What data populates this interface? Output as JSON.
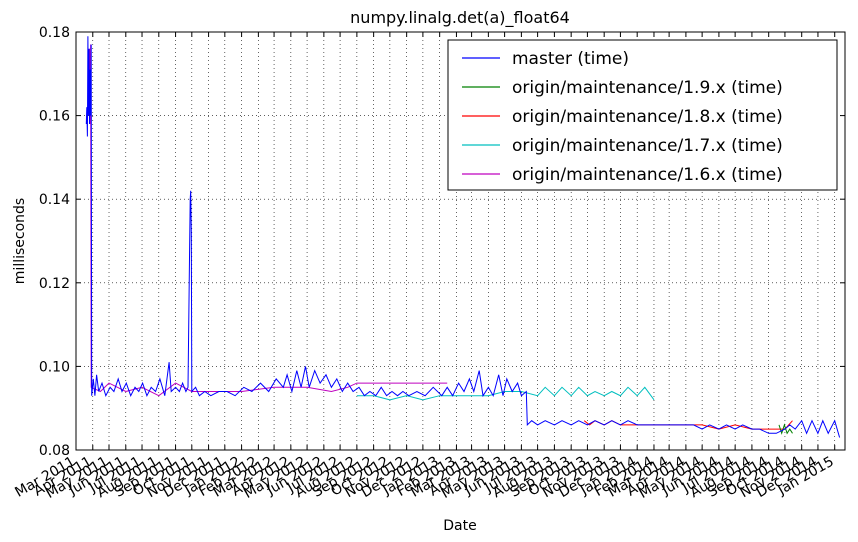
{
  "chart_data": {
    "type": "line",
    "title": "numpy.linalg.det(a)_float64",
    "xlabel": "Date",
    "ylabel": "milliseconds",
    "ylim": [
      0.08,
      0.18
    ],
    "xlim": [
      "2011-03-01",
      "2015-01-20"
    ],
    "grid": true,
    "legend_position": "top-right",
    "y_ticks": [
      "0.08",
      "0.10",
      "0.12",
      "0.14",
      "0.16",
      "0.18"
    ],
    "x_ticks": [
      {
        "date": "2011-03-01",
        "label": "Mar 2011"
      },
      {
        "date": "2011-04-01",
        "label": "Apr 2011"
      },
      {
        "date": "2011-05-01",
        "label": "May 2011"
      },
      {
        "date": "2011-06-01",
        "label": "Jun 2011"
      },
      {
        "date": "2011-07-01",
        "label": "Jul 2011"
      },
      {
        "date": "2011-08-01",
        "label": "Aug 2011"
      },
      {
        "date": "2011-09-01",
        "label": "Sep 2011"
      },
      {
        "date": "2011-10-01",
        "label": "Oct 2011"
      },
      {
        "date": "2011-11-01",
        "label": "Nov 2011"
      },
      {
        "date": "2011-12-01",
        "label": "Dec 2011"
      },
      {
        "date": "2012-01-01",
        "label": "Jan 2012"
      },
      {
        "date": "2012-02-01",
        "label": "Feb 2012"
      },
      {
        "date": "2012-03-01",
        "label": "Mar 2012"
      },
      {
        "date": "2012-04-01",
        "label": "Apr 2012"
      },
      {
        "date": "2012-05-01",
        "label": "May 2012"
      },
      {
        "date": "2012-06-01",
        "label": "Jun 2012"
      },
      {
        "date": "2012-07-01",
        "label": "Jul 2012"
      },
      {
        "date": "2012-08-01",
        "label": "Aug 2012"
      },
      {
        "date": "2012-09-01",
        "label": "Sep 2012"
      },
      {
        "date": "2012-10-01",
        "label": "Oct 2012"
      },
      {
        "date": "2012-11-01",
        "label": "Nov 2012"
      },
      {
        "date": "2012-12-01",
        "label": "Dec 2012"
      },
      {
        "date": "2013-01-01",
        "label": "Jan 2013"
      },
      {
        "date": "2013-02-01",
        "label": "Feb 2013"
      },
      {
        "date": "2013-03-01",
        "label": "Mar 2013"
      },
      {
        "date": "2013-04-01",
        "label": "Apr 2013"
      },
      {
        "date": "2013-05-01",
        "label": "May 2013"
      },
      {
        "date": "2013-06-01",
        "label": "Jun 2013"
      },
      {
        "date": "2013-07-01",
        "label": "Jul 2013"
      },
      {
        "date": "2013-08-01",
        "label": "Aug 2013"
      },
      {
        "date": "2013-09-01",
        "label": "Sep 2013"
      },
      {
        "date": "2013-10-01",
        "label": "Oct 2013"
      },
      {
        "date": "2013-11-01",
        "label": "Nov 2013"
      },
      {
        "date": "2013-12-01",
        "label": "Dec 2013"
      },
      {
        "date": "2014-01-01",
        "label": "Jan 2014"
      },
      {
        "date": "2014-02-01",
        "label": "Feb 2014"
      },
      {
        "date": "2014-03-01",
        "label": "Mar 2014"
      },
      {
        "date": "2014-04-01",
        "label": "Apr 2014"
      },
      {
        "date": "2014-05-01",
        "label": "May 2014"
      },
      {
        "date": "2014-06-01",
        "label": "Jun 2014"
      },
      {
        "date": "2014-07-01",
        "label": "Jul 2014"
      },
      {
        "date": "2014-08-01",
        "label": "Aug 2014"
      },
      {
        "date": "2014-09-01",
        "label": "Sep 2014"
      },
      {
        "date": "2014-10-01",
        "label": "Oct 2014"
      },
      {
        "date": "2014-11-01",
        "label": "Nov 2014"
      },
      {
        "date": "2014-12-01",
        "label": "Dec 2014"
      },
      {
        "date": "2015-01-01",
        "label": "Jan 2015"
      }
    ],
    "series": [
      {
        "name": "master (time)",
        "color": "#0000ff",
        "points": [
          [
            "2011-03-20",
            0.158
          ],
          [
            "2011-03-21",
            0.162
          ],
          [
            "2011-03-22",
            0.155
          ],
          [
            "2011-03-23",
            0.179
          ],
          [
            "2011-03-24",
            0.16
          ],
          [
            "2011-03-25",
            0.176
          ],
          [
            "2011-03-26",
            0.158
          ],
          [
            "2011-03-27",
            0.171
          ],
          [
            "2011-03-28",
            0.16
          ],
          [
            "2011-03-29",
            0.177
          ],
          [
            "2011-03-30",
            0.093
          ],
          [
            "2011-04-02",
            0.097
          ],
          [
            "2011-04-05",
            0.093
          ],
          [
            "2011-04-08",
            0.098
          ],
          [
            "2011-04-12",
            0.094
          ],
          [
            "2011-04-18",
            0.096
          ],
          [
            "2011-04-25",
            0.093
          ],
          [
            "2011-05-03",
            0.095
          ],
          [
            "2011-05-10",
            0.094
          ],
          [
            "2011-05-18",
            0.097
          ],
          [
            "2011-05-25",
            0.094
          ],
          [
            "2011-06-02",
            0.096
          ],
          [
            "2011-06-10",
            0.093
          ],
          [
            "2011-06-18",
            0.095
          ],
          [
            "2011-06-25",
            0.094
          ],
          [
            "2011-07-02",
            0.096
          ],
          [
            "2011-07-10",
            0.093
          ],
          [
            "2011-07-18",
            0.095
          ],
          [
            "2011-07-26",
            0.094
          ],
          [
            "2011-08-03",
            0.097
          ],
          [
            "2011-08-12",
            0.093
          ],
          [
            "2011-08-20",
            0.101
          ],
          [
            "2011-08-24",
            0.094
          ],
          [
            "2011-09-01",
            0.095
          ],
          [
            "2011-09-08",
            0.094
          ],
          [
            "2011-09-14",
            0.096
          ],
          [
            "2011-09-20",
            0.094
          ],
          [
            "2011-09-24",
            0.095
          ],
          [
            "2011-09-27",
            0.128
          ],
          [
            "2011-09-28",
            0.14
          ],
          [
            "2011-09-29",
            0.142
          ],
          [
            "2011-09-30",
            0.132
          ],
          [
            "2011-10-01",
            0.094
          ],
          [
            "2011-10-08",
            0.095
          ],
          [
            "2011-10-15",
            0.093
          ],
          [
            "2011-10-25",
            0.094
          ],
          [
            "2011-11-05",
            0.093
          ],
          [
            "2011-11-20",
            0.094
          ],
          [
            "2011-12-05",
            0.094
          ],
          [
            "2011-12-20",
            0.093
          ],
          [
            "2012-01-05",
            0.095
          ],
          [
            "2012-01-20",
            0.094
          ],
          [
            "2012-02-05",
            0.096
          ],
          [
            "2012-02-20",
            0.094
          ],
          [
            "2012-03-05",
            0.097
          ],
          [
            "2012-03-18",
            0.095
          ],
          [
            "2012-03-25",
            0.098
          ],
          [
            "2012-04-03",
            0.094
          ],
          [
            "2012-04-12",
            0.099
          ],
          [
            "2012-04-20",
            0.095
          ],
          [
            "2012-04-28",
            0.1
          ],
          [
            "2012-05-05",
            0.095
          ],
          [
            "2012-05-15",
            0.099
          ],
          [
            "2012-05-25",
            0.096
          ],
          [
            "2012-06-05",
            0.098
          ],
          [
            "2012-06-15",
            0.095
          ],
          [
            "2012-06-25",
            0.097
          ],
          [
            "2012-07-05",
            0.094
          ],
          [
            "2012-07-15",
            0.096
          ],
          [
            "2012-07-25",
            0.094
          ],
          [
            "2012-08-05",
            0.095
          ],
          [
            "2012-08-15",
            0.093
          ],
          [
            "2012-08-25",
            0.094
          ],
          [
            "2012-09-05",
            0.093
          ],
          [
            "2012-09-15",
            0.095
          ],
          [
            "2012-09-25",
            0.093
          ],
          [
            "2012-10-05",
            0.094
          ],
          [
            "2012-10-15",
            0.093
          ],
          [
            "2012-10-25",
            0.094
          ],
          [
            "2012-11-05",
            0.093
          ],
          [
            "2012-11-20",
            0.094
          ],
          [
            "2012-12-05",
            0.093
          ],
          [
            "2012-12-20",
            0.095
          ],
          [
            "2013-01-05",
            0.093
          ],
          [
            "2013-01-15",
            0.095
          ],
          [
            "2013-01-25",
            0.093
          ],
          [
            "2013-02-05",
            0.096
          ],
          [
            "2013-02-15",
            0.094
          ],
          [
            "2013-02-25",
            0.097
          ],
          [
            "2013-03-05",
            0.094
          ],
          [
            "2013-03-15",
            0.099
          ],
          [
            "2013-03-22",
            0.093
          ],
          [
            "2013-04-01",
            0.095
          ],
          [
            "2013-04-10",
            0.093
          ],
          [
            "2013-04-20",
            0.098
          ],
          [
            "2013-04-28",
            0.093
          ],
          [
            "2013-05-05",
            0.097
          ],
          [
            "2013-05-15",
            0.094
          ],
          [
            "2013-05-25",
            0.096
          ],
          [
            "2013-06-01",
            0.093
          ],
          [
            "2013-06-10",
            0.094
          ],
          [
            "2013-06-12",
            0.086
          ],
          [
            "2013-06-20",
            0.087
          ],
          [
            "2013-07-01",
            0.086
          ],
          [
            "2013-07-15",
            0.087
          ],
          [
            "2013-08-01",
            0.086
          ],
          [
            "2013-08-15",
            0.087
          ],
          [
            "2013-09-01",
            0.086
          ],
          [
            "2013-09-15",
            0.087
          ],
          [
            "2013-10-01",
            0.086
          ],
          [
            "2013-10-15",
            0.087
          ],
          [
            "2013-11-01",
            0.086
          ],
          [
            "2013-11-15",
            0.087
          ],
          [
            "2013-12-01",
            0.086
          ],
          [
            "2013-12-15",
            0.087
          ],
          [
            "2014-01-01",
            0.086
          ],
          [
            "2014-01-15",
            0.086
          ],
          [
            "2014-02-01",
            0.086
          ],
          [
            "2014-02-15",
            0.086
          ],
          [
            "2014-03-01",
            0.086
          ],
          [
            "2014-03-15",
            0.086
          ],
          [
            "2014-04-01",
            0.086
          ],
          [
            "2014-04-15",
            0.086
          ],
          [
            "2014-05-01",
            0.085
          ],
          [
            "2014-05-15",
            0.086
          ],
          [
            "2014-06-01",
            0.085
          ],
          [
            "2014-06-15",
            0.086
          ],
          [
            "2014-07-01",
            0.085
          ],
          [
            "2014-07-15",
            0.086
          ],
          [
            "2014-08-01",
            0.085
          ],
          [
            "2014-08-15",
            0.085
          ],
          [
            "2014-09-01",
            0.084
          ],
          [
            "2014-09-15",
            0.084
          ],
          [
            "2014-10-01",
            0.085
          ],
          [
            "2014-10-10",
            0.086
          ],
          [
            "2014-10-20",
            0.085
          ],
          [
            "2014-11-01",
            0.087
          ],
          [
            "2014-11-10",
            0.084
          ],
          [
            "2014-11-20",
            0.087
          ],
          [
            "2014-12-01",
            0.084
          ],
          [
            "2014-12-10",
            0.087
          ],
          [
            "2014-12-20",
            0.084
          ],
          [
            "2015-01-01",
            0.087
          ],
          [
            "2015-01-10",
            0.083
          ]
        ]
      },
      {
        "name": "origin/maintenance/1.9.x (time)",
        "color": "#008000",
        "points": [
          [
            "2014-09-20",
            0.086
          ],
          [
            "2014-09-25",
            0.084
          ],
          [
            "2014-09-30",
            0.086
          ],
          [
            "2014-10-05",
            0.084
          ],
          [
            "2014-10-10",
            0.085
          ],
          [
            "2014-10-15",
            0.084
          ]
        ]
      },
      {
        "name": "origin/maintenance/1.8.x (time)",
        "color": "#ff0000",
        "points": [
          [
            "2013-09-25",
            0.087
          ],
          [
            "2013-10-05",
            0.086
          ],
          [
            "2013-10-15",
            0.087
          ],
          [
            "2013-11-01",
            0.086
          ],
          [
            "2013-11-15",
            0.087
          ],
          [
            "2013-12-01",
            0.086
          ],
          [
            "2013-12-15",
            0.086
          ],
          [
            "2014-01-10",
            0.086
          ],
          [
            "2014-02-01",
            0.086
          ],
          [
            "2014-03-01",
            0.086
          ],
          [
            "2014-04-01",
            0.086
          ],
          [
            "2014-05-01",
            0.086
          ],
          [
            "2014-06-01",
            0.085
          ],
          [
            "2014-07-01",
            0.086
          ],
          [
            "2014-08-01",
            0.085
          ],
          [
            "2014-09-01",
            0.085
          ],
          [
            "2014-10-01",
            0.085
          ],
          [
            "2014-10-15",
            0.087
          ]
        ]
      },
      {
        "name": "origin/maintenance/1.7.x (time)",
        "color": "#00bfbf",
        "points": [
          [
            "2012-08-01",
            0.093
          ],
          [
            "2012-09-01",
            0.093
          ],
          [
            "2012-10-01",
            0.092
          ],
          [
            "2012-11-01",
            0.093
          ],
          [
            "2012-12-01",
            0.092
          ],
          [
            "2013-01-01",
            0.093
          ],
          [
            "2013-02-01",
            0.093
          ],
          [
            "2013-03-01",
            0.093
          ],
          [
            "2013-04-01",
            0.093
          ],
          [
            "2013-05-01",
            0.094
          ],
          [
            "2013-06-01",
            0.094
          ],
          [
            "2013-07-01",
            0.093
          ],
          [
            "2013-07-15",
            0.095
          ],
          [
            "2013-08-01",
            0.093
          ],
          [
            "2013-08-15",
            0.095
          ],
          [
            "2013-09-01",
            0.093
          ],
          [
            "2013-09-15",
            0.095
          ],
          [
            "2013-10-01",
            0.093
          ],
          [
            "2013-10-15",
            0.094
          ],
          [
            "2013-11-01",
            0.093
          ],
          [
            "2013-11-15",
            0.094
          ],
          [
            "2013-12-01",
            0.093
          ],
          [
            "2013-12-15",
            0.095
          ],
          [
            "2014-01-01",
            0.093
          ],
          [
            "2014-01-15",
            0.095
          ],
          [
            "2014-02-01",
            0.092
          ]
        ]
      },
      {
        "name": "origin/maintenance/1.6.x (time)",
        "color": "#bf00bf",
        "points": [
          [
            "2011-03-25",
            0.17
          ],
          [
            "2011-03-26",
            0.176
          ],
          [
            "2011-03-27",
            0.158
          ],
          [
            "2011-03-28",
            0.177
          ],
          [
            "2011-03-29",
            0.095
          ],
          [
            "2011-04-15",
            0.094
          ],
          [
            "2011-05-01",
            0.096
          ],
          [
            "2011-06-01",
            0.094
          ],
          [
            "2011-07-01",
            0.095
          ],
          [
            "2011-08-01",
            0.093
          ],
          [
            "2011-09-01",
            0.096
          ],
          [
            "2011-10-01",
            0.094
          ],
          [
            "2011-11-15",
            0.094
          ],
          [
            "2012-01-01",
            0.094
          ],
          [
            "2012-03-01",
            0.095
          ],
          [
            "2012-05-01",
            0.095
          ],
          [
            "2012-06-15",
            0.094
          ],
          [
            "2012-07-15",
            0.095
          ],
          [
            "2012-08-01",
            0.096
          ],
          [
            "2012-10-01",
            0.096
          ],
          [
            "2012-12-01",
            0.096
          ],
          [
            "2013-01-15",
            0.096
          ]
        ]
      }
    ]
  }
}
